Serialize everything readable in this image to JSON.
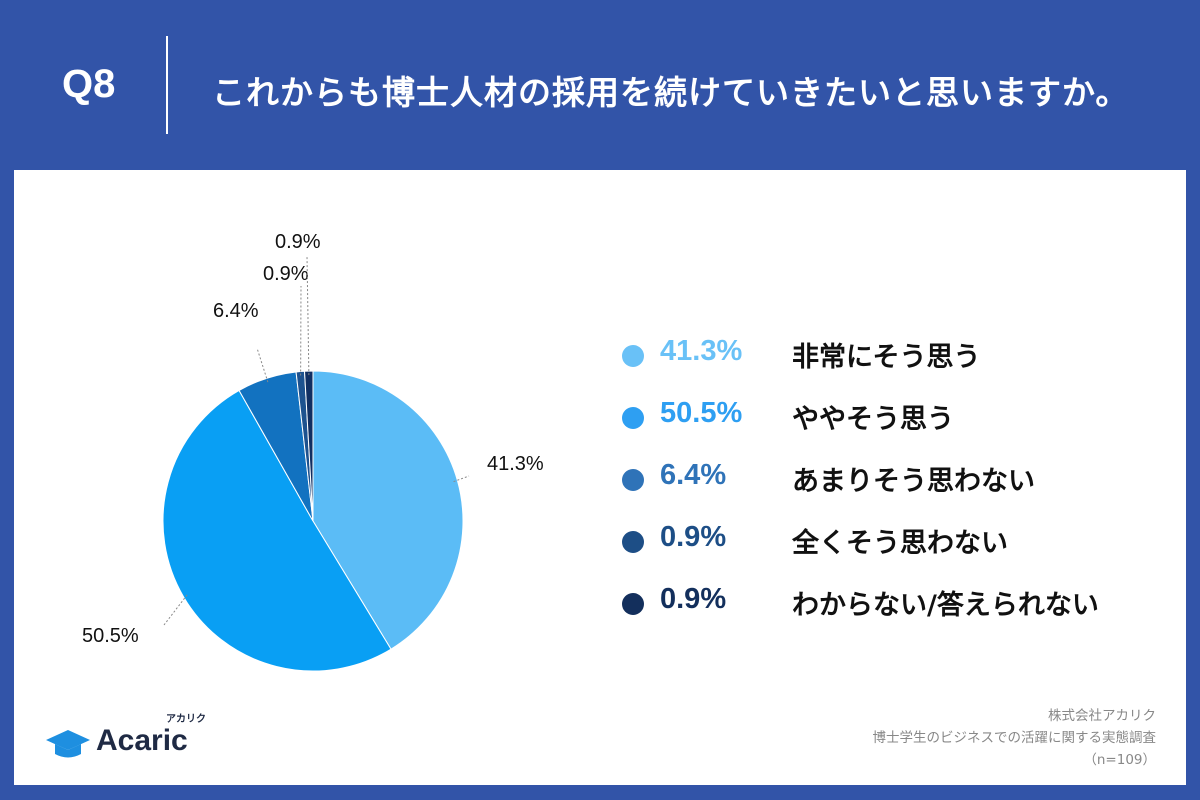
{
  "header": {
    "q_label": "Q8",
    "question": "これからも博士人材の採用を続けていきたいと思いますか。"
  },
  "colors": {
    "background": "#3254a8",
    "card": "#ffffff"
  },
  "chart_data": {
    "type": "pie",
    "title": "",
    "slices": [
      {
        "label": "非常にそう思う",
        "value": 41.3,
        "display": "41.3%",
        "color": "#5bbcf6"
      },
      {
        "label": "ややそう思う",
        "value": 50.5,
        "display": "50.5%",
        "color": "#099ff4"
      },
      {
        "label": "あまりそう思わない",
        "value": 6.4,
        "display": "6.4%",
        "color": "#1272c0"
      },
      {
        "label": "全くそう思わない",
        "value": 0.9,
        "display": "0.9%",
        "color": "#1d528f"
      },
      {
        "label": "わからない/答えられない",
        "value": 0.9,
        "display": "0.9%",
        "color": "#112f62"
      }
    ],
    "legend_position": "right",
    "start_angle": "top",
    "direction": "clockwise"
  },
  "legend": {
    "items": [
      {
        "pct": "41.3%",
        "label": "非常にそう思う",
        "color": "#69c1f7"
      },
      {
        "pct": "50.5%",
        "label": "ややそう思う",
        "color": "#2e9ff2"
      },
      {
        "pct": "6.4%",
        "label": "あまりそう思わない",
        "color": "#2f73b8"
      },
      {
        "pct": "0.9%",
        "label": "全くそう思わない",
        "color": "#1d4e86"
      },
      {
        "pct": "0.9%",
        "label": "わからない/答えられない",
        "color": "#132f5c"
      }
    ]
  },
  "logo": {
    "word": "Acaric",
    "kana": "アカリク",
    "icon": "graduation-cap-icon"
  },
  "source": {
    "company": "株式会社アカリク",
    "survey": "博士学生のビジネスでの活躍に関する実態調査",
    "sample": "（n=109）"
  }
}
